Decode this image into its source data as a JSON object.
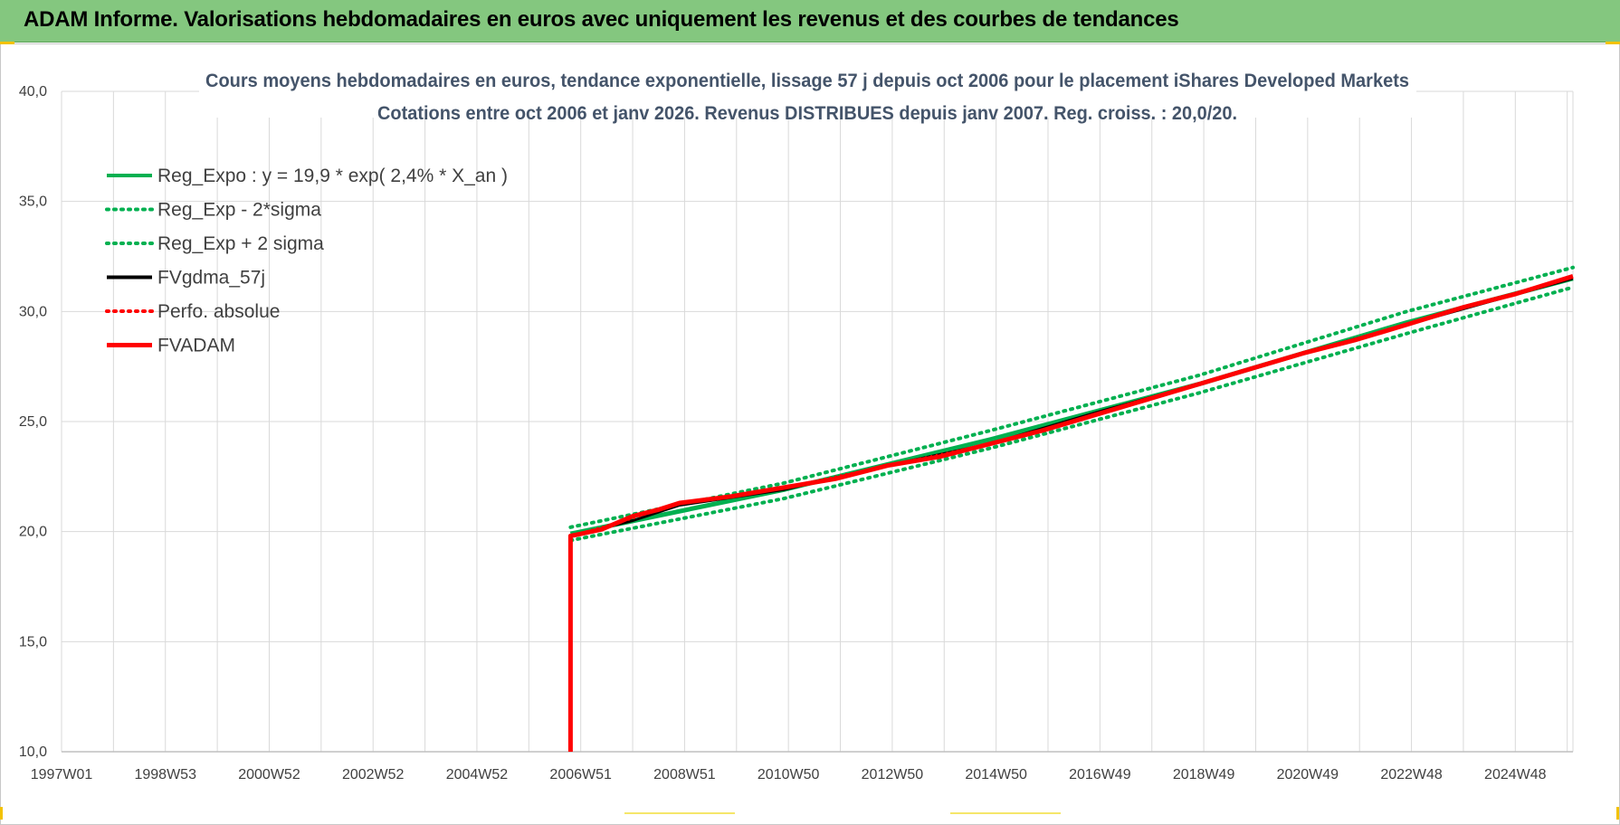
{
  "banner": {
    "title": "ADAM Informe. Valorisations hebdomadaires en euros avec uniquement les revenus et des courbes de tendances"
  },
  "colors": {
    "banner": "#84c77f",
    "reg_expo": "#00b050",
    "fvgdma": "#000000",
    "fvadam": "#ff0000",
    "perfo": "#ff0000",
    "gridline": "#d9d9d9"
  },
  "chart_data": {
    "type": "line",
    "title": "Cours moyens hebdomadaires en euros, tendance exponentielle, lissage 57 j depuis oct 2006 pour le placement iShares Developed Markets",
    "subtitle": "Cotations entre oct 2006 et janv 2026. Revenus DISTRIBUES depuis janv 2007. Reg. croiss. : 20,0/20.",
    "xlabel": "",
    "ylabel": "",
    "x_tick_labels": [
      "1997W01",
      "1998W53",
      "2000W52",
      "2002W52",
      "2004W52",
      "2006W51",
      "2008W51",
      "2010W50",
      "2012W50",
      "2014W50",
      "2016W49",
      "2018W49",
      "2020W49",
      "2022W48",
      "2024W48"
    ],
    "x_range_years": [
      1997.0,
      2026.1
    ],
    "ylim": [
      10,
      40
    ],
    "y_ticks": [
      "10,0",
      "15,0",
      "20,0",
      "25,0",
      "30,0",
      "35,0",
      "40,0"
    ],
    "grid": true,
    "legend_position": "top-left",
    "legend": [
      {
        "label": "Reg_Expo : y = 19,9 * exp( 2,4% *  X_an )",
        "color": "#00b050",
        "style": "solid"
      },
      {
        "label": "Reg_Exp - 2*sigma",
        "color": "#00b050",
        "style": "dotted"
      },
      {
        "label": "Reg_Exp + 2 sigma",
        "color": "#00b050",
        "style": "dotted"
      },
      {
        "label": "FVgdma_57j",
        "color": "#000000",
        "style": "solid"
      },
      {
        "label": "Perfo. absolue",
        "color": "#ff0000",
        "style": "dotted"
      },
      {
        "label": "FVADAM",
        "color": "#ff0000",
        "style": "solid-thick"
      }
    ],
    "series": [
      {
        "name": "Reg_Expo : y = 19,9 * exp( 2,4% *  X_an )",
        "x": [
          2006.8,
          2010.9,
          2014.9,
          2018.9,
          2022.9,
          2026.1
        ],
        "y": [
          19.9,
          21.9,
          24.2,
          26.7,
          29.5,
          31.5
        ]
      },
      {
        "name": "Reg_Exp - 2*sigma",
        "x": [
          2006.8,
          2010.9,
          2014.9,
          2018.9,
          2022.9,
          2026.1
        ],
        "y": [
          19.6,
          21.5,
          23.8,
          26.3,
          29.0,
          31.1
        ]
      },
      {
        "name": "Reg_Exp + 2 sigma",
        "x": [
          2006.8,
          2010.9,
          2014.9,
          2018.9,
          2022.9,
          2026.1
        ],
        "y": [
          20.2,
          22.2,
          24.6,
          27.1,
          30.0,
          32.0
        ]
      },
      {
        "name": "FVgdma_57j",
        "x": [
          2006.8,
          2008.0,
          2008.9,
          2010.9,
          2012.9,
          2014.9,
          2016.9,
          2018.9,
          2020.9,
          2022.9,
          2026.1
        ],
        "y": [
          19.8,
          20.5,
          21.2,
          21.9,
          23.0,
          24.0,
          25.4,
          26.7,
          28.1,
          29.4,
          31.5
        ]
      },
      {
        "name": "Perfo. absolue",
        "x": [
          2006.8,
          2008.0,
          2008.9,
          2010.9,
          2012.9,
          2014.9,
          2016.9,
          2018.9,
          2020.9,
          2022.9,
          2026.1
        ],
        "y": [
          19.8,
          20.6,
          21.3,
          22.0,
          23.0,
          24.0,
          25.3,
          26.7,
          28.1,
          29.4,
          31.6
        ]
      },
      {
        "name": "FVADAM",
        "x": [
          2006.8,
          2006.8,
          2007.4,
          2008.0,
          2008.5,
          2008.9,
          2009.9,
          2010.9,
          2011.9,
          2012.9,
          2013.9,
          2014.9,
          2015.9,
          2016.9,
          2017.9,
          2018.9,
          2019.9,
          2020.9,
          2021.9,
          2022.9,
          2024.0,
          2025.0,
          2026.1
        ],
        "y": [
          10.0,
          19.8,
          20.1,
          20.7,
          21.0,
          21.3,
          21.6,
          22.0,
          22.4,
          23.0,
          23.4,
          24.0,
          24.6,
          25.3,
          26.0,
          26.7,
          27.4,
          28.1,
          28.7,
          29.4,
          30.2,
          30.8,
          31.6
        ]
      }
    ]
  }
}
